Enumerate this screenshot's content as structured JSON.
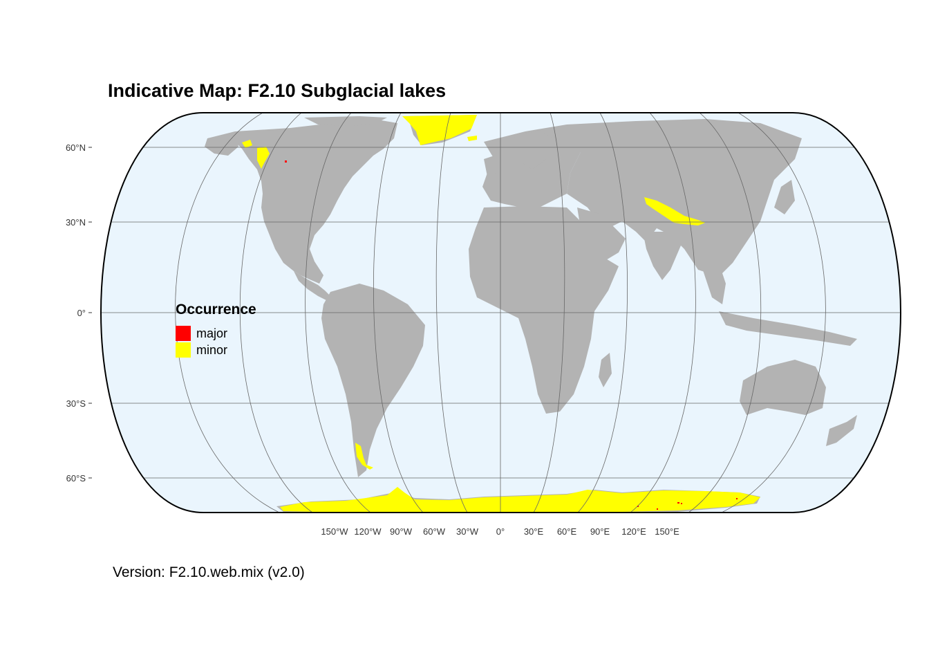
{
  "title": "Indicative Map: F2.10 Subglacial lakes",
  "version": "Version: F2.10.web.mix (v2.0)",
  "legend": {
    "title": "Occurrence",
    "items": [
      {
        "label": "major",
        "color": "#ff0000"
      },
      {
        "label": "minor",
        "color": "#ffff00"
      }
    ]
  },
  "axes": {
    "lat_labels": [
      "60°N",
      "30°N",
      "0°",
      "30°S",
      "60°S"
    ],
    "lon_labels": [
      "150°W",
      "120°W",
      "90°W",
      "60°W",
      "30°W",
      "0°",
      "30°E",
      "60°E",
      "90°E",
      "120°E",
      "150°E"
    ]
  },
  "colors": {
    "ocean": "#eaf5fd",
    "land": "#b3b3b3",
    "graticule": "#666666",
    "major": "#ff0000",
    "minor": "#ffff00"
  }
}
